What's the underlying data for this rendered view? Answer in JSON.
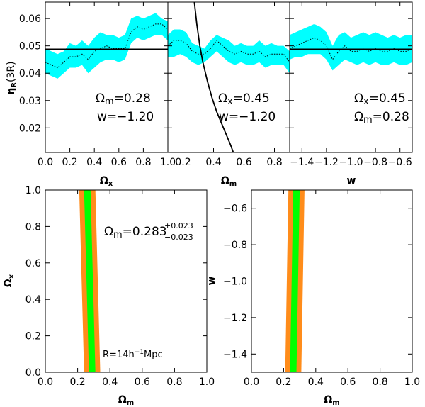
{
  "chart_data": [
    {
      "id": "top1",
      "type": "line",
      "ylabel": "η_R(3R)",
      "xlabel": "Ω_x",
      "xlim": [
        0.0,
        1.0
      ],
      "ylim": [
        0.011,
        0.066
      ],
      "xticks": [
        "0.0",
        "0.2",
        "0.4",
        "0.6",
        "0.8",
        "1.0"
      ],
      "xtick_values": [
        0.0,
        0.2,
        0.4,
        0.6,
        0.8,
        1.0
      ],
      "yticks": [
        "0.02",
        "0.03",
        "0.04",
        "0.05",
        "0.06"
      ],
      "ytick_values": [
        0.02,
        0.03,
        0.04,
        0.05,
        0.06
      ],
      "reference_line": 0.0488,
      "band_x": [
        0.0,
        0.05,
        0.1,
        0.15,
        0.2,
        0.25,
        0.3,
        0.35,
        0.4,
        0.45,
        0.5,
        0.55,
        0.6,
        0.65,
        0.7,
        0.75,
        0.8,
        0.85,
        0.9,
        0.95,
        1.0
      ],
      "band_upper": [
        0.049,
        0.048,
        0.047,
        0.048,
        0.051,
        0.05,
        0.052,
        0.05,
        0.053,
        0.055,
        0.054,
        0.054,
        0.053,
        0.054,
        0.06,
        0.061,
        0.06,
        0.061,
        0.062,
        0.06,
        0.059
      ],
      "band_lower": [
        0.04,
        0.039,
        0.038,
        0.04,
        0.042,
        0.042,
        0.043,
        0.04,
        0.042,
        0.044,
        0.045,
        0.045,
        0.044,
        0.045,
        0.051,
        0.053,
        0.052,
        0.053,
        0.054,
        0.054,
        0.052
      ],
      "center": [
        0.044,
        0.043,
        0.042,
        0.044,
        0.046,
        0.046,
        0.047,
        0.045,
        0.048,
        0.049,
        0.05,
        0.049,
        0.049,
        0.049,
        0.055,
        0.057,
        0.056,
        0.057,
        0.058,
        0.058,
        0.056
      ],
      "annot1": "Ω",
      "annot1_sub": "m",
      "annot1_val": "=0.28",
      "annot2": "w=−1.20"
    },
    {
      "id": "top2",
      "type": "line",
      "xlabel": "Ω_m",
      "xlim": [
        0.1,
        0.9
      ],
      "ylim": [
        0.011,
        0.066
      ],
      "xticks": [
        "0.2",
        "0.4",
        "0.6",
        "0.8"
      ],
      "xtick_values": [
        0.2,
        0.4,
        0.6,
        0.8
      ],
      "reference_curve": "steeply falling line from (0.29, 0.066) to (0.55, 0.011)",
      "curve_x": [
        0.27,
        0.29,
        0.31,
        0.33,
        0.36,
        0.39,
        0.42,
        0.45,
        0.48,
        0.51,
        0.53
      ],
      "curve_y": [
        0.068,
        0.058,
        0.05,
        0.044,
        0.037,
        0.031,
        0.026,
        0.022,
        0.018,
        0.014,
        0.011
      ],
      "band_x": [
        0.1,
        0.14,
        0.18,
        0.22,
        0.26,
        0.3,
        0.34,
        0.38,
        0.42,
        0.46,
        0.5,
        0.54,
        0.58,
        0.62,
        0.66,
        0.7,
        0.74,
        0.78,
        0.82,
        0.86,
        0.9
      ],
      "band_upper": [
        0.054,
        0.056,
        0.056,
        0.055,
        0.051,
        0.05,
        0.049,
        0.052,
        0.054,
        0.053,
        0.052,
        0.05,
        0.051,
        0.05,
        0.05,
        0.052,
        0.05,
        0.051,
        0.05,
        0.05,
        0.048
      ],
      "band_lower": [
        0.046,
        0.046,
        0.047,
        0.046,
        0.044,
        0.043,
        0.044,
        0.046,
        0.048,
        0.046,
        0.044,
        0.043,
        0.044,
        0.043,
        0.043,
        0.044,
        0.042,
        0.043,
        0.043,
        0.043,
        0.04
      ],
      "center": [
        0.05,
        0.052,
        0.052,
        0.051,
        0.048,
        0.047,
        0.047,
        0.049,
        0.052,
        0.05,
        0.048,
        0.047,
        0.048,
        0.047,
        0.047,
        0.048,
        0.046,
        0.047,
        0.047,
        0.047,
        0.044
      ],
      "annot1": "Ω",
      "annot1_sub": "x",
      "annot1_val": "=0.45",
      "annot2": "w=−1.20"
    },
    {
      "id": "top3",
      "type": "line",
      "xlabel": "w",
      "xlim": [
        -1.5,
        -0.5
      ],
      "ylim": [
        0.011,
        0.066
      ],
      "xticks": [
        "−1.4",
        "−1.2",
        "−1.0",
        "−0.8",
        "−0.6"
      ],
      "xtick_values": [
        -1.4,
        -1.2,
        -1.0,
        -0.8,
        -0.6
      ],
      "reference_line": 0.0488,
      "band_x": [
        -1.5,
        -1.45,
        -1.4,
        -1.35,
        -1.3,
        -1.25,
        -1.2,
        -1.15,
        -1.1,
        -1.05,
        -1.0,
        -0.95,
        -0.9,
        -0.85,
        -0.8,
        -0.75,
        -0.7,
        -0.65,
        -0.6,
        -0.55,
        -0.5
      ],
      "band_upper": [
        0.054,
        0.055,
        0.056,
        0.057,
        0.058,
        0.057,
        0.055,
        0.05,
        0.054,
        0.055,
        0.053,
        0.054,
        0.055,
        0.054,
        0.055,
        0.054,
        0.053,
        0.054,
        0.053,
        0.054,
        0.054
      ],
      "band_lower": [
        0.045,
        0.046,
        0.046,
        0.047,
        0.047,
        0.047,
        0.045,
        0.041,
        0.043,
        0.045,
        0.044,
        0.043,
        0.044,
        0.043,
        0.044,
        0.043,
        0.043,
        0.044,
        0.043,
        0.043,
        0.044
      ],
      "center": [
        0.049,
        0.05,
        0.051,
        0.052,
        0.053,
        0.052,
        0.05,
        0.045,
        0.048,
        0.05,
        0.048,
        0.048,
        0.049,
        0.048,
        0.049,
        0.048,
        0.048,
        0.049,
        0.048,
        0.048,
        0.049
      ],
      "annot1": "Ω",
      "annot1_sub": "x",
      "annot1_val": "=0.45",
      "annot2": "Ω",
      "annot2_sub": "m",
      "annot2_val": "=0.28"
    },
    {
      "id": "bottom1",
      "type": "contour",
      "xlabel": "Ω_m",
      "ylabel": "Ω_x",
      "xlim": [
        0.0,
        1.0
      ],
      "ylim": [
        0.0,
        1.0
      ],
      "xticks": [
        "0.0",
        "0.2",
        "0.4",
        "0.6",
        "0.8",
        "1.0"
      ],
      "xtick_values": [
        0.0,
        0.2,
        0.4,
        0.6,
        0.8,
        1.0
      ],
      "yticks": [
        "0.0",
        "0.2",
        "0.4",
        "0.6",
        "0.8",
        "1.0"
      ],
      "ytick_values": [
        0.0,
        0.2,
        0.4,
        0.6,
        0.8,
        1.0
      ],
      "outer_band": {
        "top": [
          0.21,
          0.31
        ],
        "bottom": [
          0.24,
          0.34
        ]
      },
      "inner_band": {
        "top": [
          0.24,
          0.28
        ],
        "bottom": [
          0.27,
          0.31
        ]
      },
      "best_fit_label": "Ω",
      "best_fit_sub": "m",
      "best_fit_value": "=0.283",
      "best_fit_plus": "+0.023",
      "best_fit_minus": "−0.023",
      "scale_label": "R=14h",
      "scale_exp": "−1",
      "scale_unit": "Mpc"
    },
    {
      "id": "bottom2",
      "type": "contour",
      "xlabel": "Ω_m",
      "ylabel": "w",
      "xlim": [
        0.0,
        1.0
      ],
      "ylim": [
        -1.5,
        -0.5
      ],
      "xticks": [
        "0.0",
        "0.2",
        "0.4",
        "0.6",
        "0.8",
        "1.0"
      ],
      "xtick_values": [
        0.0,
        0.2,
        0.4,
        0.6,
        0.8,
        1.0
      ],
      "yticks": [
        "−1.4",
        "−1.2",
        "−1.0",
        "−0.8",
        "−0.6"
      ],
      "ytick_values": [
        -1.4,
        -1.2,
        -1.0,
        -0.8,
        -0.6
      ],
      "outer_band": {
        "top": [
          0.23,
          0.33
        ],
        "bottom": [
          0.21,
          0.31
        ]
      },
      "inner_band": {
        "top": [
          0.26,
          0.3
        ],
        "bottom": [
          0.24,
          0.28
        ]
      }
    }
  ],
  "colors": {
    "band": "#00ffff",
    "outer_contour": "#ff8c1a",
    "inner_contour": "#00ff00",
    "line": "#000000"
  }
}
